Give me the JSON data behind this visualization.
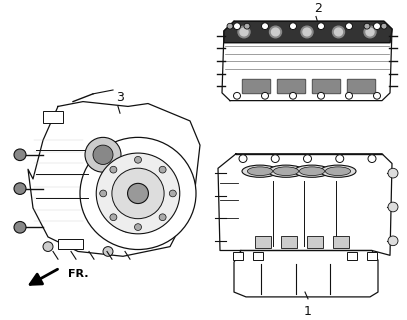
{
  "figsize": [
    4.07,
    3.2
  ],
  "dpi": 100,
  "background_color": "#ffffff",
  "image_data": ""
}
